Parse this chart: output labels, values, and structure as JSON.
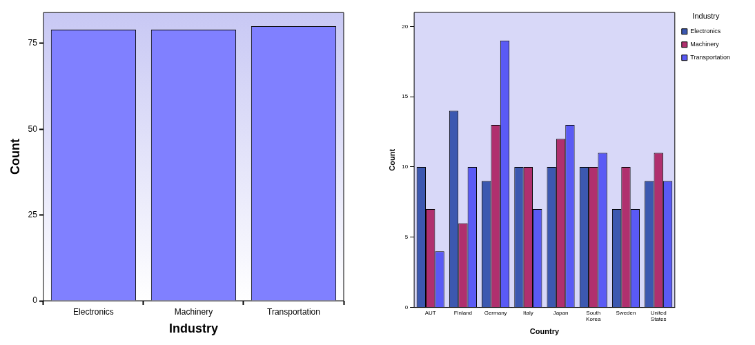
{
  "chart_data": [
    {
      "type": "bar",
      "xlabel": "Industry",
      "ylabel": "Count",
      "categories": [
        "Electronics",
        "Machinery",
        "Transportation"
      ],
      "values": [
        79,
        79,
        80
      ],
      "color": "#8080ff",
      "ylim": [
        0,
        84
      ],
      "yticks": [
        0,
        25,
        50,
        75
      ],
      "grid": false,
      "legend": false
    },
    {
      "type": "bar",
      "xlabel": "Country",
      "ylabel": "Count",
      "legend_title": "Industry",
      "legend": "top right",
      "grid": false,
      "categories": [
        "AUT",
        "Finland",
        "Germany",
        "Italy",
        "Japan",
        "South Korea",
        "Sweden",
        "United States"
      ],
      "ylim": [
        0,
        21
      ],
      "yticks": [
        0,
        5,
        10,
        15,
        20
      ],
      "series": [
        {
          "name": "Electronics",
          "color": "#3c58b0",
          "values": [
            10,
            14,
            9,
            10,
            10,
            10,
            7,
            9
          ]
        },
        {
          "name": "Machinery",
          "color": "#b0306e",
          "values": [
            7,
            6,
            13,
            10,
            12,
            10,
            10,
            11
          ]
        },
        {
          "name": "Transportation",
          "color": "#5a5af5",
          "values": [
            4,
            10,
            19,
            7,
            13,
            11,
            7,
            9
          ]
        }
      ]
    }
  ]
}
